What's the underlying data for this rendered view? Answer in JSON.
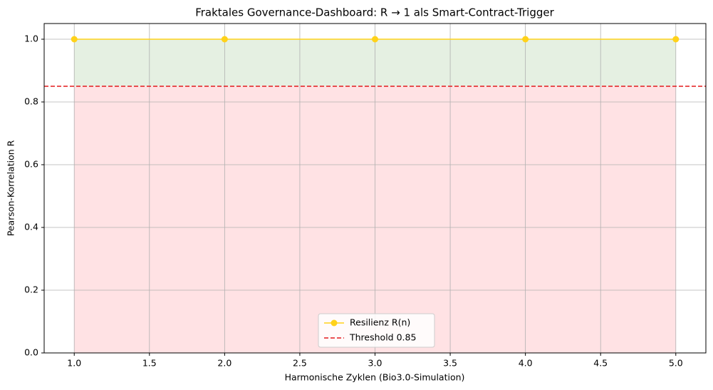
{
  "chart_data": {
    "type": "line",
    "title": "Fraktales Governance-Dashboard: R → 1 als Smart-Contract-Trigger",
    "x_label": "Harmonische Zyklen (Bio3.0-Simulation)",
    "y_label": "Pearson-Korrelation R",
    "x": [
      1,
      2,
      3,
      4,
      5
    ],
    "series": [
      {
        "name": "Resilienz R(n)",
        "color": "#ffd21a",
        "values": [
          1,
          1,
          1,
          1,
          1
        ],
        "fill_color": "#e5f0e2"
      }
    ],
    "threshold": {
      "name": "Threshold 0.85",
      "value": 0.85,
      "color": "#e31a1c",
      "fill_color": "#ffe2e4"
    },
    "xlim": [
      0.8,
      5.2
    ],
    "ylim": [
      0,
      1.05
    ],
    "xticks": [
      {
        "value": 1,
        "label": "1.0"
      },
      1.5,
      {
        "value": 2,
        "label": "2.0"
      },
      2.5,
      {
        "value": 3,
        "label": "3.0"
      },
      3.5,
      {
        "value": 4,
        "label": "4.0"
      },
      4.5,
      {
        "value": 5,
        "label": "5.0"
      }
    ],
    "yticks": [
      {
        "value": 0,
        "label": "0.0"
      },
      0.2,
      0.4,
      0.6,
      0.8,
      {
        "value": 1,
        "label": "1.0"
      }
    ],
    "grid": true,
    "legend": "lower center"
  }
}
